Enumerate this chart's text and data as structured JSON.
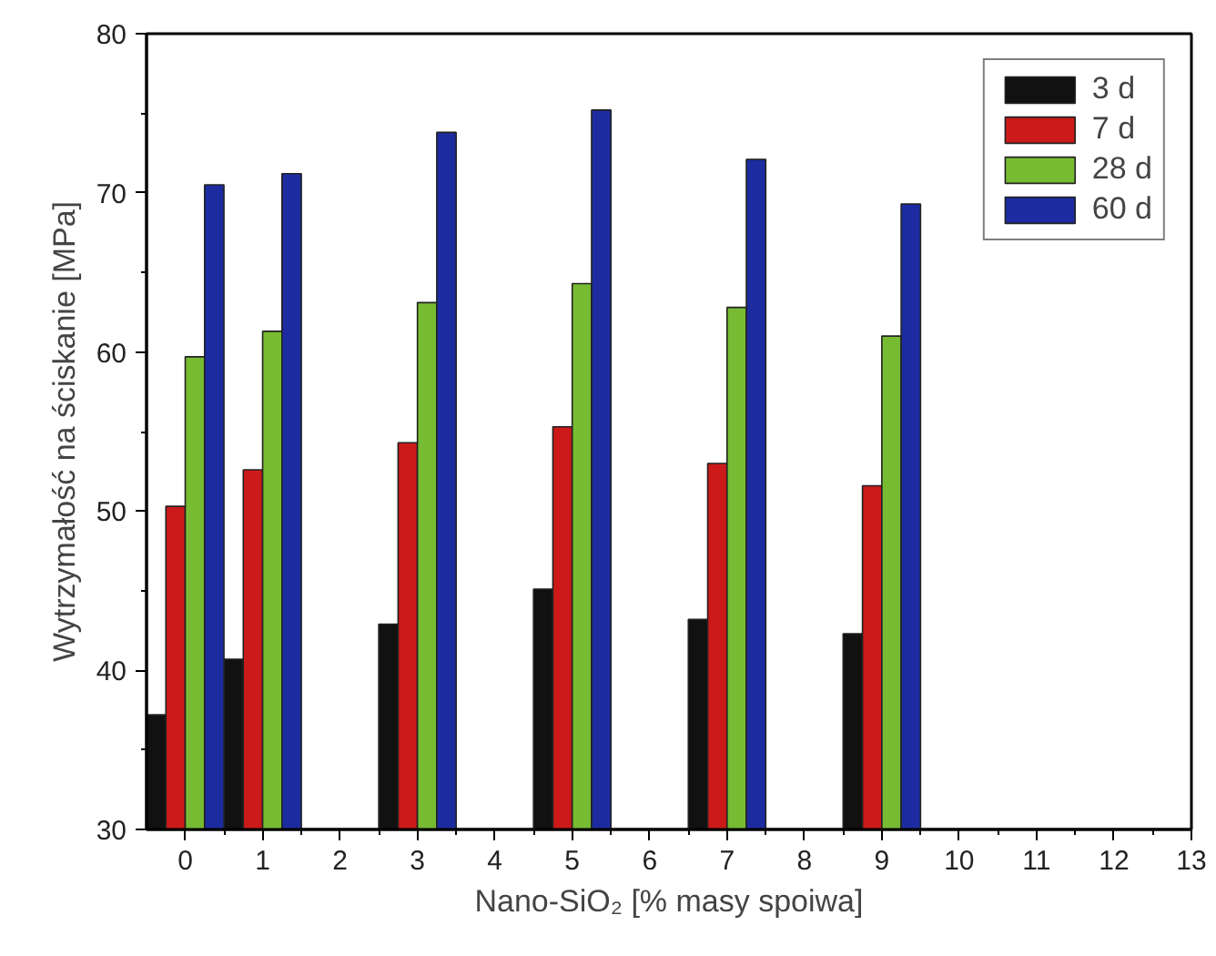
{
  "chart_data": {
    "type": "bar",
    "xlabel": "Nano-SiO₂ [% masy spoiwa]",
    "ylabel": "Wytrzymałość na ściskanie [MPa]",
    "x": [
      0,
      1,
      3,
      5,
      7,
      9
    ],
    "series": [
      {
        "name": "3 d",
        "color": "#111111",
        "values": [
          37.2,
          40.7,
          42.9,
          45.1,
          43.2,
          42.3
        ]
      },
      {
        "name": "7 d",
        "color": "#cc1a1a",
        "values": [
          50.3,
          52.6,
          54.3,
          55.3,
          53.0,
          51.6
        ]
      },
      {
        "name": "28 d",
        "color": "#77bb33",
        "values": [
          59.7,
          61.3,
          63.1,
          64.3,
          62.8,
          61.0
        ]
      },
      {
        "name": "60 d",
        "color": "#1c2ca0",
        "values": [
          70.5,
          71.2,
          73.8,
          75.2,
          72.1,
          69.3
        ]
      }
    ],
    "xlim": [
      -0.5,
      13
    ],
    "ylim": [
      30,
      80
    ],
    "xticks": [
      0,
      1,
      2,
      3,
      4,
      5,
      6,
      7,
      8,
      9,
      10,
      11,
      12,
      13,
      {
        "value": 0.5,
        "label": null
      },
      {
        "value": 1.5,
        "label": null
      },
      {
        "value": 2.5,
        "label": null
      },
      {
        "value": 3.5,
        "label": null
      },
      {
        "value": 4.5,
        "label": null
      },
      {
        "value": 5.5,
        "label": null
      },
      {
        "value": 6.5,
        "label": null
      },
      {
        "value": 7.5,
        "label": null
      },
      {
        "value": 8.5,
        "label": null
      },
      {
        "value": 9.5,
        "label": null
      },
      {
        "value": 10.5,
        "label": null
      },
      {
        "value": 11.5,
        "label": null
      },
      {
        "value": 12.5,
        "label": null
      }
    ],
    "yticks": [
      30,
      40,
      50,
      60,
      70,
      80,
      {
        "value": 35,
        "label": null
      },
      {
        "value": 45,
        "label": null
      },
      {
        "value": 55,
        "label": null
      },
      {
        "value": 65,
        "label": null
      },
      {
        "value": 75,
        "label": null
      }
    ],
    "grid": false,
    "legend": "top right"
  }
}
